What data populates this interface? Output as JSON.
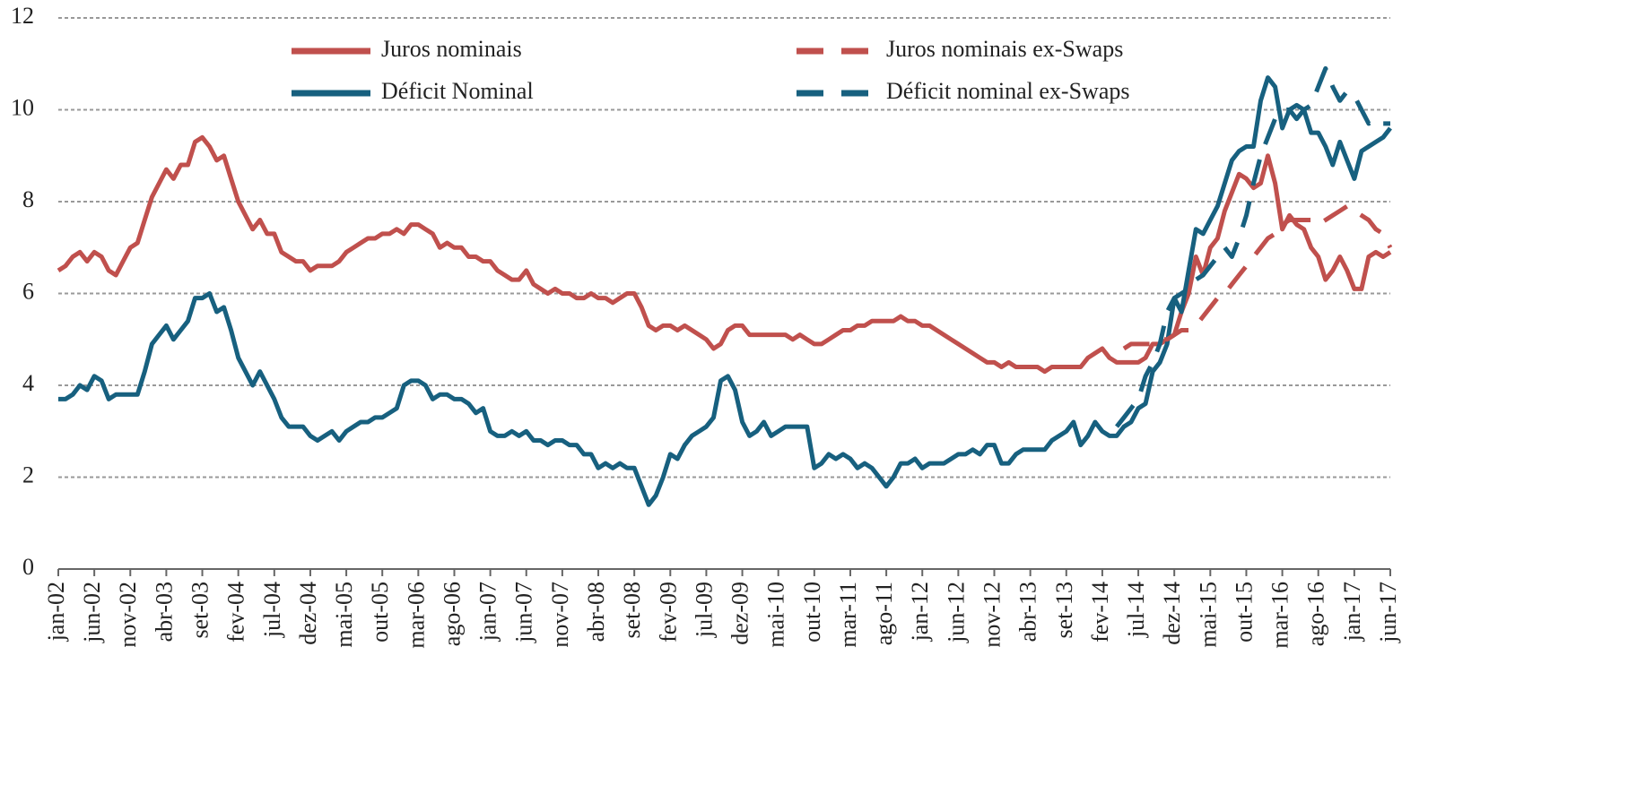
{
  "chart_data": {
    "type": "line",
    "categories": [
      "jan-02",
      null,
      null,
      null,
      null,
      "jun-02",
      null,
      null,
      null,
      null,
      "nov-02",
      null,
      null,
      null,
      null,
      "abr-03",
      null,
      null,
      null,
      null,
      "set-03",
      null,
      null,
      null,
      null,
      "fev-04",
      null,
      null,
      null,
      null,
      "jul-04",
      null,
      null,
      null,
      null,
      "dez-04",
      null,
      null,
      null,
      null,
      "mai-05",
      null,
      null,
      null,
      null,
      "out-05",
      null,
      null,
      null,
      null,
      "mar-06",
      null,
      null,
      null,
      null,
      "ago-06",
      null,
      null,
      null,
      null,
      "jan-07",
      null,
      null,
      null,
      null,
      "jun-07",
      null,
      null,
      null,
      null,
      "nov-07",
      null,
      null,
      null,
      null,
      "abr-08",
      null,
      null,
      null,
      null,
      "set-08",
      null,
      null,
      null,
      null,
      "fev-09",
      null,
      null,
      null,
      null,
      "jul-09",
      null,
      null,
      null,
      null,
      "dez-09",
      null,
      null,
      null,
      null,
      "mai-10",
      null,
      null,
      null,
      null,
      "out-10",
      null,
      null,
      null,
      null,
      "mar-11",
      null,
      null,
      null,
      null,
      "ago-11",
      null,
      null,
      null,
      null,
      "jan-12",
      null,
      null,
      null,
      null,
      "jun-12",
      null,
      null,
      null,
      null,
      "nov-12",
      null,
      null,
      null,
      null,
      "abr-13",
      null,
      null,
      null,
      null,
      "set-13",
      null,
      null,
      null,
      null,
      "fev-14",
      null,
      null,
      null,
      null,
      "jul-14",
      null,
      null,
      null,
      null,
      "dez-14",
      null,
      null,
      null,
      null,
      "mai-15",
      null,
      null,
      null,
      null,
      "out-15",
      null,
      null,
      null,
      null,
      "mar-16",
      null,
      null,
      null,
      null,
      "ago-16",
      null,
      null,
      null,
      null,
      "jan-17",
      null,
      null,
      null,
      null,
      "jun-17"
    ],
    "series": [
      {
        "name": "Juros nominais",
        "color": "#c0504d",
        "style": "solid",
        "values": [
          6.5,
          6.6,
          6.8,
          6.9,
          6.7,
          6.9,
          6.8,
          6.5,
          6.4,
          6.7,
          7.0,
          7.1,
          7.6,
          8.1,
          8.4,
          8.7,
          8.5,
          8.8,
          8.8,
          9.3,
          9.4,
          9.2,
          8.9,
          9.0,
          8.5,
          8.0,
          7.7,
          7.4,
          7.6,
          7.3,
          7.3,
          6.9,
          6.8,
          6.7,
          6.7,
          6.5,
          6.6,
          6.6,
          6.6,
          6.7,
          6.9,
          7.0,
          7.1,
          7.2,
          7.2,
          7.3,
          7.3,
          7.4,
          7.3,
          7.5,
          7.5,
          7.4,
          7.3,
          7.0,
          7.1,
          7.0,
          7.0,
          6.8,
          6.8,
          6.7,
          6.7,
          6.5,
          6.4,
          6.3,
          6.3,
          6.5,
          6.2,
          6.1,
          6.0,
          6.1,
          6.0,
          6.0,
          5.9,
          5.9,
          6.0,
          5.9,
          5.9,
          5.8,
          5.9,
          6.0,
          6.0,
          5.7,
          5.3,
          5.2,
          5.3,
          5.3,
          5.2,
          5.3,
          5.2,
          5.1,
          5.0,
          4.8,
          4.9,
          5.2,
          5.3,
          5.3,
          5.1,
          5.1,
          5.1,
          5.1,
          5.1,
          5.1,
          5.0,
          5.1,
          5.0,
          4.9,
          4.9,
          5.0,
          5.1,
          5.2,
          5.2,
          5.3,
          5.3,
          5.4,
          5.4,
          5.4,
          5.4,
          5.5,
          5.4,
          5.4,
          5.3,
          5.3,
          5.2,
          5.1,
          5.0,
          4.9,
          4.8,
          4.7,
          4.6,
          4.5,
          4.5,
          4.4,
          4.5,
          4.4,
          4.4,
          4.4,
          4.4,
          4.3,
          4.4,
          4.4,
          4.4,
          4.4,
          4.4,
          4.6,
          4.7,
          4.8,
          4.6,
          4.5,
          4.5,
          4.5,
          4.5,
          4.6,
          4.9,
          4.9,
          5.0,
          5.1,
          5.6,
          6.0,
          6.8,
          6.4,
          7.0,
          7.2,
          7.8,
          8.2,
          8.6,
          8.5,
          8.3,
          8.4,
          9.0,
          8.4,
          7.4,
          7.7,
          7.5,
          7.4,
          7.0,
          6.8,
          6.3,
          6.5,
          6.8,
          6.5,
          6.1,
          6.1,
          6.8,
          6.9,
          6.8,
          6.9
        ]
      },
      {
        "name": "Déficit Nominal",
        "color": "#17607f",
        "style": "solid",
        "values": [
          3.7,
          3.7,
          3.8,
          4.0,
          3.9,
          4.2,
          4.1,
          3.7,
          3.8,
          3.8,
          3.8,
          3.8,
          4.3,
          4.9,
          5.1,
          5.3,
          5.0,
          5.2,
          5.4,
          5.9,
          5.9,
          6.0,
          5.6,
          5.7,
          5.2,
          4.6,
          4.3,
          4.0,
          4.3,
          4.0,
          3.7,
          3.3,
          3.1,
          3.1,
          3.1,
          2.9,
          2.8,
          2.9,
          3.0,
          2.8,
          3.0,
          3.1,
          3.2,
          3.2,
          3.3,
          3.3,
          3.4,
          3.5,
          4.0,
          4.1,
          4.1,
          4.0,
          3.7,
          3.8,
          3.8,
          3.7,
          3.7,
          3.6,
          3.4,
          3.5,
          3.0,
          2.9,
          2.9,
          3.0,
          2.9,
          3.0,
          2.8,
          2.8,
          2.7,
          2.8,
          2.8,
          2.7,
          2.7,
          2.5,
          2.5,
          2.2,
          2.3,
          2.2,
          2.3,
          2.2,
          2.2,
          1.8,
          1.4,
          1.6,
          2.0,
          2.5,
          2.4,
          2.7,
          2.9,
          3.0,
          3.1,
          3.3,
          4.1,
          4.2,
          3.9,
          3.2,
          2.9,
          3.0,
          3.2,
          2.9,
          3.0,
          3.1,
          3.1,
          3.1,
          3.1,
          2.2,
          2.3,
          2.5,
          2.4,
          2.5,
          2.4,
          2.2,
          2.3,
          2.2,
          2.0,
          1.8,
          2.0,
          2.3,
          2.3,
          2.4,
          2.2,
          2.3,
          2.3,
          2.3,
          2.4,
          2.5,
          2.5,
          2.6,
          2.5,
          2.7,
          2.7,
          2.3,
          2.3,
          2.5,
          2.6,
          2.6,
          2.6,
          2.6,
          2.8,
          2.9,
          3.0,
          3.2,
          2.7,
          2.9,
          3.2,
          3.0,
          2.9,
          2.9,
          3.1,
          3.2,
          3.5,
          3.6,
          4.3,
          4.5,
          4.9,
          5.9,
          5.6,
          6.5,
          7.4,
          7.3,
          7.6,
          7.9,
          8.4,
          8.9,
          9.1,
          9.2,
          9.2,
          10.2,
          10.7,
          10.5,
          9.6,
          10.0,
          9.8,
          10.0,
          9.5,
          9.5,
          9.2,
          8.8,
          9.3,
          8.9,
          8.5,
          9.1,
          9.2,
          9.3,
          9.4,
          9.6
        ]
      },
      {
        "name": "Juros nominais ex-Swaps",
        "color": "#c0504d",
        "style": "dashed",
        "values": [
          null,
          null,
          null,
          null,
          null,
          null,
          null,
          null,
          null,
          null,
          null,
          null,
          null,
          null,
          null,
          null,
          null,
          null,
          null,
          null,
          null,
          null,
          null,
          null,
          null,
          null,
          null,
          null,
          null,
          null,
          null,
          null,
          null,
          null,
          null,
          null,
          null,
          null,
          null,
          null,
          null,
          null,
          null,
          null,
          null,
          null,
          null,
          null,
          null,
          null,
          null,
          null,
          null,
          null,
          null,
          null,
          null,
          null,
          null,
          null,
          null,
          null,
          null,
          null,
          null,
          null,
          null,
          null,
          null,
          null,
          null,
          null,
          null,
          null,
          null,
          null,
          null,
          null,
          null,
          null,
          null,
          null,
          null,
          null,
          null,
          null,
          null,
          null,
          null,
          null,
          null,
          null,
          null,
          null,
          null,
          null,
          null,
          null,
          null,
          null,
          null,
          null,
          null,
          null,
          null,
          null,
          null,
          null,
          null,
          null,
          null,
          null,
          null,
          null,
          null,
          null,
          null,
          null,
          null,
          null,
          null,
          null,
          null,
          null,
          null,
          null,
          null,
          null,
          null,
          null,
          null,
          null,
          null,
          null,
          null,
          null,
          null,
          null,
          null,
          null,
          null,
          null,
          null,
          null,
          null,
          null,
          null,
          null,
          4.8,
          4.9,
          4.9,
          4.9,
          4.9,
          5.0,
          5.0,
          5.1,
          5.2,
          5.2,
          5.3,
          5.5,
          5.7,
          5.9,
          6.0,
          6.2,
          6.4,
          6.6,
          6.8,
          7.0,
          7.2,
          7.3,
          7.5,
          7.6,
          7.6,
          7.6,
          7.6,
          7.5,
          7.6,
          7.7,
          7.8,
          7.9,
          7.8,
          7.7,
          7.6,
          7.4,
          7.3,
          7.0
        ]
      },
      {
        "name": "Déficit nominal ex-Swaps",
        "color": "#17607f",
        "style": "dashed",
        "values": [
          null,
          null,
          null,
          null,
          null,
          null,
          null,
          null,
          null,
          null,
          null,
          null,
          null,
          null,
          null,
          null,
          null,
          null,
          null,
          null,
          null,
          null,
          null,
          null,
          null,
          null,
          null,
          null,
          null,
          null,
          null,
          null,
          null,
          null,
          null,
          null,
          null,
          null,
          null,
          null,
          null,
          null,
          null,
          null,
          null,
          null,
          null,
          null,
          null,
          null,
          null,
          null,
          null,
          null,
          null,
          null,
          null,
          null,
          null,
          null,
          null,
          null,
          null,
          null,
          null,
          null,
          null,
          null,
          null,
          null,
          null,
          null,
          null,
          null,
          null,
          null,
          null,
          null,
          null,
          null,
          null,
          null,
          null,
          null,
          null,
          null,
          null,
          null,
          null,
          null,
          null,
          null,
          null,
          null,
          null,
          null,
          null,
          null,
          null,
          null,
          null,
          null,
          null,
          null,
          null,
          null,
          null,
          null,
          null,
          null,
          null,
          null,
          null,
          null,
          null,
          null,
          null,
          null,
          null,
          null,
          null,
          null,
          null,
          null,
          null,
          null,
          null,
          null,
          null,
          null,
          null,
          null,
          null,
          null,
          null,
          null,
          null,
          null,
          null,
          null,
          null,
          null,
          null,
          null,
          null,
          null,
          null,
          3.1,
          3.3,
          3.5,
          3.7,
          4.2,
          4.5,
          4.9,
          5.6,
          5.9,
          6.0,
          6.1,
          6.3,
          6.4,
          6.6,
          6.8,
          7.0,
          6.8,
          7.2,
          7.7,
          8.4,
          9.0,
          9.4,
          9.8,
          10.0,
          10.0,
          10.1,
          10.0,
          10.1,
          10.5,
          10.9,
          10.5,
          10.2,
          10.4,
          10.3,
          10.0,
          9.7,
          9.8,
          9.7,
          9.7
        ]
      }
    ],
    "ylim": [
      0,
      12
    ],
    "yticks": [
      0,
      2,
      4,
      6,
      8,
      10,
      12
    ],
    "grid": true,
    "legend": "top"
  }
}
